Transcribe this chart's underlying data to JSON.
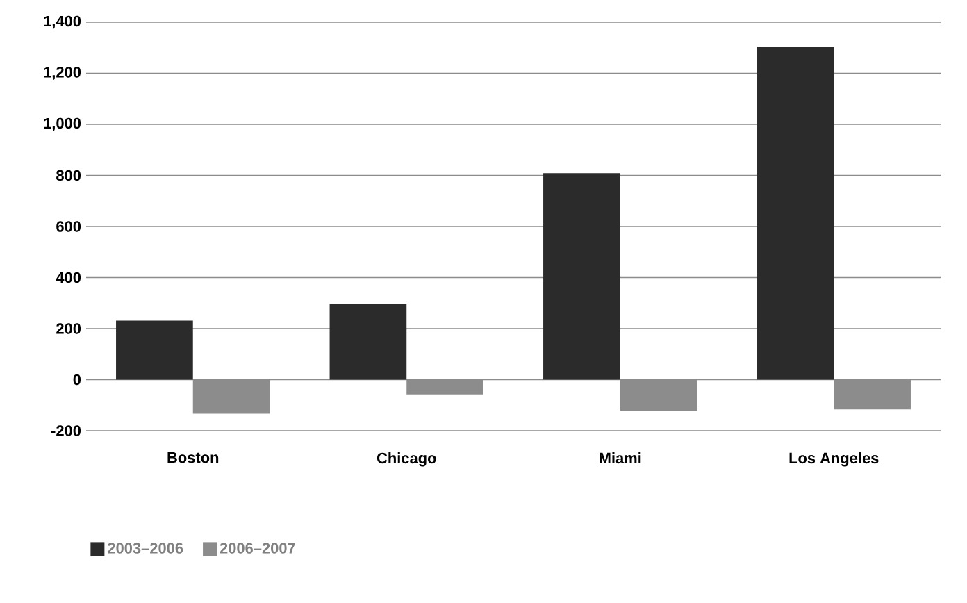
{
  "chart_data": {
    "type": "bar",
    "categories": [
      "Boston",
      "Chicago",
      "Miami",
      "Los Angeles"
    ],
    "series": [
      {
        "name": "2003–2006",
        "color": "#2b2b2b",
        "values": [
          231,
          296,
          809,
          1305
        ]
      },
      {
        "name": "2006–2007",
        "color": "#8c8c8c",
        "values": [
          -133,
          -58,
          -122,
          -116
        ]
      }
    ],
    "ylim": [
      -200,
      1400
    ],
    "yticks": [
      -200,
      0,
      200,
      400,
      600,
      800,
      {
        "value": 1000,
        "label": "1,000"
      },
      {
        "value": 1200,
        "label": "1,200"
      },
      {
        "value": 1400,
        "label": "1,400"
      }
    ],
    "grid": "y",
    "legend": "bottom left"
  }
}
